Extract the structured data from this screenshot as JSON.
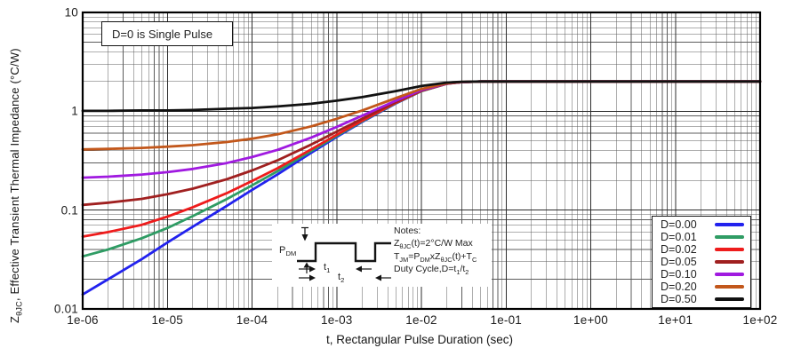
{
  "figure": {
    "annotation_box": "D=0 is Single Pulse",
    "y_axis": {
      "ticks": [
        "10",
        "1",
        "0.1",
        "0.01"
      ],
      "label_rich": [
        {
          "s": 0,
          "v": "Z"
        },
        {
          "s": 1,
          "v": "θJC"
        },
        {
          "s": 0,
          "v": ", Effective Transient Thermal Impedance (°C/W)"
        }
      ]
    },
    "x_axis": {
      "ticks": [
        "1e-06",
        "1e-05",
        "1e-04",
        "1e-03",
        "1e-02",
        "1e-01",
        "1e+00",
        "1e+01",
        "1e+02"
      ],
      "label": "t, Rectangular Pulse Duration (sec)"
    },
    "inset": {
      "p_dm_rich": [
        {
          "s": 0,
          "v": "P"
        },
        {
          "s": 1,
          "v": "DM"
        }
      ],
      "t1_rich": [
        {
          "s": 0,
          "v": "t"
        },
        {
          "s": 1,
          "v": "1"
        }
      ],
      "t2_rich": [
        {
          "s": 0,
          "v": "t"
        },
        {
          "s": 1,
          "v": "2"
        }
      ],
      "notes_title": "Notes:",
      "notes_lines_rich": [
        [
          {
            "s": 0,
            "v": "Z"
          },
          {
            "s": 1,
            "v": "θJC"
          },
          {
            "s": 0,
            "v": "(t)=2°C/W Max"
          }
        ],
        [
          {
            "s": 0,
            "v": "T"
          },
          {
            "s": 1,
            "v": "JM"
          },
          {
            "s": 0,
            "v": "=P"
          },
          {
            "s": 1,
            "v": "DM"
          },
          {
            "s": 0,
            "v": "xZ"
          },
          {
            "s": 1,
            "v": "θJC"
          },
          {
            "s": 0,
            "v": "(t)+T"
          },
          {
            "s": 1,
            "v": "C"
          }
        ],
        [
          {
            "s": 0,
            "v": "Duty Cycle,D=t"
          },
          {
            "s": 1,
            "v": "1"
          },
          {
            "s": 0,
            "v": "/t"
          },
          {
            "s": 1,
            "v": "2"
          }
        ]
      ]
    },
    "grid": {
      "major_color": "#2d2d2d",
      "minor_color": "#5c5c5c",
      "frame_color": "#000000",
      "background": "#ffffff"
    }
  },
  "chart_data": {
    "type": "line",
    "title": "",
    "xlabel": "t, Rectangular Pulse Duration (sec)",
    "ylabel": "ZθJC, Effective Transient Thermal Impedance (°C/W)",
    "xscale": "log",
    "yscale": "log",
    "xlim": [
      1e-06,
      100
    ],
    "ylim": [
      0.01,
      10
    ],
    "grid": "both-major-and-minor",
    "legend_position": "bottom-right",
    "annotation": "D=0 is Single Pulse",
    "max_thermal_impedance": 2,
    "x": [
      1e-06,
      2e-06,
      5e-06,
      1e-05,
      2e-05,
      5e-05,
      0.0001,
      0.0002,
      0.0005,
      0.001,
      0.002,
      0.005,
      0.01,
      0.02,
      0.03,
      0.05,
      0.1,
      1,
      10,
      100
    ],
    "series": [
      {
        "name": "D=0.00",
        "color": "#2222ee",
        "values": [
          0.014,
          0.02,
          0.032,
          0.047,
          0.068,
          0.11,
          0.16,
          0.23,
          0.38,
          0.55,
          0.78,
          1.2,
          1.6,
          1.9,
          1.97,
          2,
          2,
          2,
          2,
          2
        ]
      },
      {
        "name": "D=0.01",
        "color": "#2f9c64",
        "values": [
          0.034,
          0.04,
          0.052,
          0.066,
          0.087,
          0.129,
          0.178,
          0.248,
          0.396,
          0.564,
          0.792,
          1.21,
          1.6,
          1.9,
          1.97,
          2,
          2,
          2,
          2,
          2
        ]
      },
      {
        "name": "D=0.02",
        "color": "#ee1c1c",
        "values": [
          0.054,
          0.06,
          0.071,
          0.086,
          0.107,
          0.148,
          0.197,
          0.265,
          0.412,
          0.579,
          0.804,
          1.22,
          1.61,
          1.9,
          1.97,
          2,
          2,
          2,
          2,
          2
        ]
      },
      {
        "name": "D=0.05",
        "color": "#a02020",
        "values": [
          0.113,
          0.119,
          0.13,
          0.145,
          0.165,
          0.205,
          0.252,
          0.319,
          0.461,
          0.623,
          0.841,
          1.24,
          1.62,
          1.91,
          1.97,
          2,
          2,
          2,
          2,
          2
        ]
      },
      {
        "name": "D=0.10",
        "color": "#a01ae0",
        "values": [
          0.213,
          0.218,
          0.229,
          0.242,
          0.261,
          0.299,
          0.344,
          0.407,
          0.542,
          0.695,
          0.902,
          1.28,
          1.64,
          1.91,
          1.97,
          2,
          2,
          2,
          2,
          2
        ]
      },
      {
        "name": "D=0.20",
        "color": "#c2571b",
        "values": [
          0.411,
          0.416,
          0.426,
          0.438,
          0.454,
          0.488,
          0.528,
          0.584,
          0.704,
          0.84,
          1.02,
          1.36,
          1.68,
          1.92,
          1.98,
          2,
          2,
          2,
          2,
          2
        ]
      },
      {
        "name": "D=0.50",
        "color": "#111111",
        "values": [
          1.01,
          1.01,
          1.02,
          1.02,
          1.03,
          1.06,
          1.08,
          1.12,
          1.19,
          1.28,
          1.39,
          1.6,
          1.8,
          1.95,
          1.99,
          2,
          2,
          2,
          2,
          2
        ]
      }
    ]
  }
}
